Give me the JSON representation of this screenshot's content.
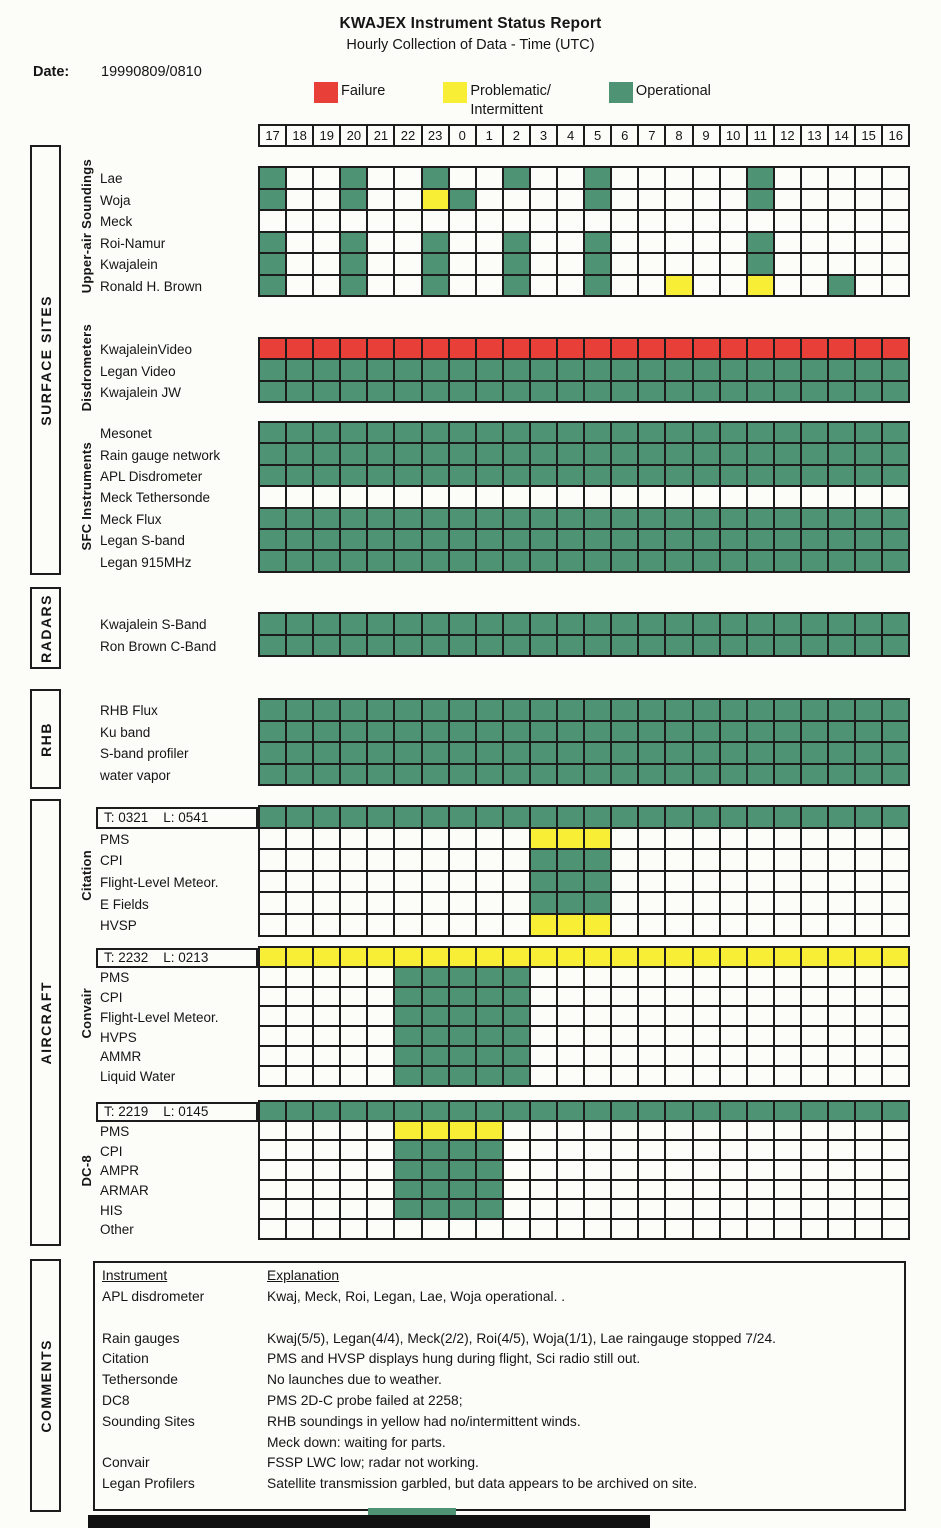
{
  "report": {
    "title": "KWAJEX Instrument Status Report",
    "subtitle": "Hourly Collection of Data - Time (UTC)",
    "date_label": "Date:",
    "date_value": "19990809/0810"
  },
  "legend": {
    "failure_label": "Failure",
    "problematic_label_line1": "Problematic/",
    "problematic_label_line2": "Intermittent",
    "operational_label": "Operational"
  },
  "status_colors": {
    "failure": "#e84038",
    "problematic": "#f8ee35",
    "operational": "#4e9474",
    "line": "#1c1c1c"
  },
  "sidebar_sections": [
    "SURFACE SITES",
    "RADARS",
    "RHB",
    "AIRCRAFT",
    "COMMENTS"
  ],
  "grid": {
    "cell_codes": {
      "G": "operational",
      "Y": "problematic",
      "R": "failure",
      ".": "empty"
    },
    "hours": [
      "17",
      "18",
      "19",
      "20",
      "21",
      "22",
      "23",
      "0",
      "1",
      "2",
      "3",
      "4",
      "5",
      "6",
      "7",
      "8",
      "9",
      "10",
      "11",
      "12",
      "13",
      "14",
      "15",
      "16"
    ],
    "blocks": [
      {
        "id": "upper-air-soundings",
        "side_label": "Upper-air Soundings",
        "rows": [
          {
            "label": "Lae",
            "cells": "G..G..G..G..G.....G....."
          },
          {
            "label": "Woja",
            "cells": "G..G..YG....G.....G....."
          },
          {
            "label": "Meck",
            "cells": "........................"
          },
          {
            "label": "Roi-Namur",
            "cells": "G..G..G..G..G.....G....."
          },
          {
            "label": "Kwajalein",
            "cells": "G..G..G..G..G.....G....."
          },
          {
            "label": "Ronald H. Brown",
            "cells": "G..G..G..G..G..Y..Y..G.."
          }
        ]
      },
      {
        "id": "disdrometers",
        "side_label": "Disdrometers",
        "rows": [
          {
            "label": "KwajaleinVideo",
            "cells": "RRRRRRRRRRRRRRRRRRRRRRRR"
          },
          {
            "label": "Legan Video",
            "cells": "GGGGGGGGGGGGGGGGGGGGGGGG"
          },
          {
            "label": "Kwajalein JW",
            "cells": "GGGGGGGGGGGGGGGGGGGGGGGG"
          }
        ]
      },
      {
        "id": "sfc-instruments",
        "side_label": "SFC Instruments",
        "rows": [
          {
            "label": "Mesonet",
            "cells": "GGGGGGGGGGGGGGGGGGGGGGGG"
          },
          {
            "label": "Rain gauge network",
            "cells": "GGGGGGGGGGGGGGGGGGGGGGGG"
          },
          {
            "label": "APL Disdrometer",
            "cells": "GGGGGGGGGGGGGGGGGGGGGGGG"
          },
          {
            "label": "Meck Tethersonde",
            "cells": "........................"
          },
          {
            "label": "Meck Flux",
            "cells": "GGGGGGGGGGGGGGGGGGGGGGGG"
          },
          {
            "label": "Legan S-band",
            "cells": "GGGGGGGGGGGGGGGGGGGGGGGG"
          },
          {
            "label": "Legan 915MHz",
            "cells": "GGGGGGGGGGGGGGGGGGGGGGGG"
          }
        ]
      },
      {
        "id": "radars",
        "side_label": "",
        "rows": [
          {
            "label": "Kwajalein S-Band",
            "cells": "GGGGGGGGGGGGGGGGGGGGGGGG"
          },
          {
            "label": "Ron Brown C-Band",
            "cells": "GGGGGGGGGGGGGGGGGGGGGGGG"
          }
        ]
      },
      {
        "id": "rhb-instruments",
        "side_label": "",
        "rows": [
          {
            "label": "RHB Flux",
            "cells": "GGGGGGGGGGGGGGGGGGGGGGGG"
          },
          {
            "label": "Ku band",
            "cells": "GGGGGGGGGGGGGGGGGGGGGGGG"
          },
          {
            "label": "S-band profiler",
            "cells": "GGGGGGGGGGGGGGGGGGGGGGGG"
          },
          {
            "label": "water vapor",
            "cells": "GGGGGGGGGGGGGGGGGGGGGGGG"
          }
        ]
      },
      {
        "id": "citation",
        "side_label": "Citation",
        "rows": [
          {
            "label": "T: 0321    L: 0541",
            "boxed": true,
            "cells": "GGGGGGGGGGGGGGGGGGGGGGGG"
          },
          {
            "label": "PMS",
            "cells": "..........YYY..........."
          },
          {
            "label": "CPI",
            "cells": "..........GGG..........."
          },
          {
            "label": "Flight-Level Meteor.",
            "cells": "..........GGG..........."
          },
          {
            "label": "E Fields",
            "cells": "..........GGG..........."
          },
          {
            "label": "HVSP",
            "cells": "..........YYY..........."
          }
        ]
      },
      {
        "id": "convair",
        "side_label": "Convair",
        "rows": [
          {
            "label": "T: 2232    L: 0213",
            "boxed": true,
            "cells": "YYYYYYYYYYYYYYYYYYYYYYYY"
          },
          {
            "label": "PMS",
            "cells": ".....GGGGG.............."
          },
          {
            "label": "CPI",
            "cells": ".....GGGGG.............."
          },
          {
            "label": "Flight-Level Meteor.",
            "cells": ".....GGGGG.............."
          },
          {
            "label": "HVPS",
            "cells": ".....GGGGG.............."
          },
          {
            "label": "AMMR",
            "cells": ".....GGGGG.............."
          },
          {
            "label": "Liquid Water",
            "cells": ".....GGGGG.............."
          }
        ]
      },
      {
        "id": "dc-8",
        "side_label": "DC-8",
        "rows": [
          {
            "label": "T: 2219    L: 0145",
            "boxed": true,
            "cells": "GGGGGGGGGGGGGGGGGGGGGGGG"
          },
          {
            "label": "PMS",
            "cells": ".....YYYY..............."
          },
          {
            "label": "CPI",
            "cells": ".....GGGG..............."
          },
          {
            "label": "AMPR",
            "cells": ".....GGGG..............."
          },
          {
            "label": "ARMAR",
            "cells": ".....GGGG..............."
          },
          {
            "label": "HIS",
            "cells": ".....GGGG..............."
          },
          {
            "label": "Other",
            "cells": "........................"
          }
        ]
      }
    ]
  },
  "comments": {
    "header": {
      "instrument": "Instrument",
      "explanation": "Explanation"
    },
    "rows": [
      {
        "instrument": "APL disdrometer",
        "explanation": "Kwaj, Meck, Roi, Legan, Lae, Woja operational. ."
      },
      {
        "instrument": "Rain gauges",
        "explanation": "Kwaj(5/5), Legan(4/4), Meck(2/2), Roi(4/5), Woja(1/1), Lae raingauge stopped 7/24.",
        "gap_before": true
      },
      {
        "instrument": "Citation",
        "explanation": "PMS and HVSP displays hung during flight, Sci radio still out."
      },
      {
        "instrument": "Tethersonde",
        "explanation": "No launches due to weather."
      },
      {
        "instrument": "DC8",
        "explanation": "PMS 2D-C probe failed at 2258;"
      },
      {
        "instrument": "Sounding Sites",
        "explanation": "RHB soundings in yellow had no/intermittent winds."
      },
      {
        "instrument": "",
        "explanation": "Meck down: waiting for parts."
      },
      {
        "instrument": "Convair",
        "explanation": "FSSP LWC low; radar not working."
      },
      {
        "instrument": "Legan Profilers",
        "explanation": "Satellite transmission garbled, but data appears to be archived on site."
      }
    ]
  }
}
